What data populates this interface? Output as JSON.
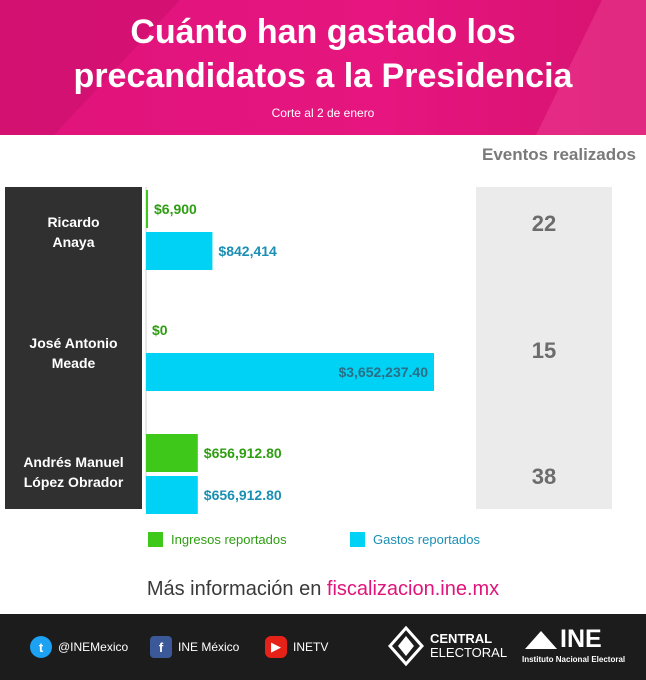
{
  "header": {
    "title_line1": "Cuánto han gastado los",
    "title_line2": "precandidatos a la Presidencia",
    "subtitle": "Corte al 2 de enero"
  },
  "events_title": "Eventos realizados",
  "chart_data": {
    "type": "bar",
    "orientation": "horizontal",
    "categories": [
      "Ricardo Anaya",
      "José Antonio Meade",
      "Andrés Manuel López Obrador"
    ],
    "category_lines": [
      [
        "Ricardo",
        "Anaya"
      ],
      [
        "José Antonio",
        "Meade"
      ],
      [
        "Andrés Manuel",
        "López Obrador"
      ]
    ],
    "series": [
      {
        "name": "Ingresos reportados",
        "color": "#3ec91a",
        "label_color": "#2e9e12",
        "values": [
          6900,
          0,
          656912.8
        ],
        "labels": [
          "$6,900",
          "$0",
          "$656,912.80"
        ]
      },
      {
        "name": "Gastos reportados",
        "color": "#00d2f5",
        "label_color": "#1a8fb3",
        "values": [
          842414,
          3652237.4,
          656912.8
        ],
        "labels": [
          "$842,414",
          "$3,652,237.40",
          "$656,912.80"
        ]
      }
    ],
    "events": [
      "22",
      "15",
      "38"
    ],
    "xlim": [
      0,
      3652237.4
    ],
    "grid": false,
    "legend_position": "bottom"
  },
  "footer": {
    "more_info_prefix": "Más información en ",
    "more_info_link": "fiscalizacion.ine.mx",
    "twitter": "@INEMexico",
    "facebook": "INE México",
    "youtube": "INETV",
    "central_line1": "CENTRAL",
    "central_line2": "ELECTORAL",
    "ine_logo": "INE",
    "ine_name": "Instituto Nacional Electoral"
  }
}
